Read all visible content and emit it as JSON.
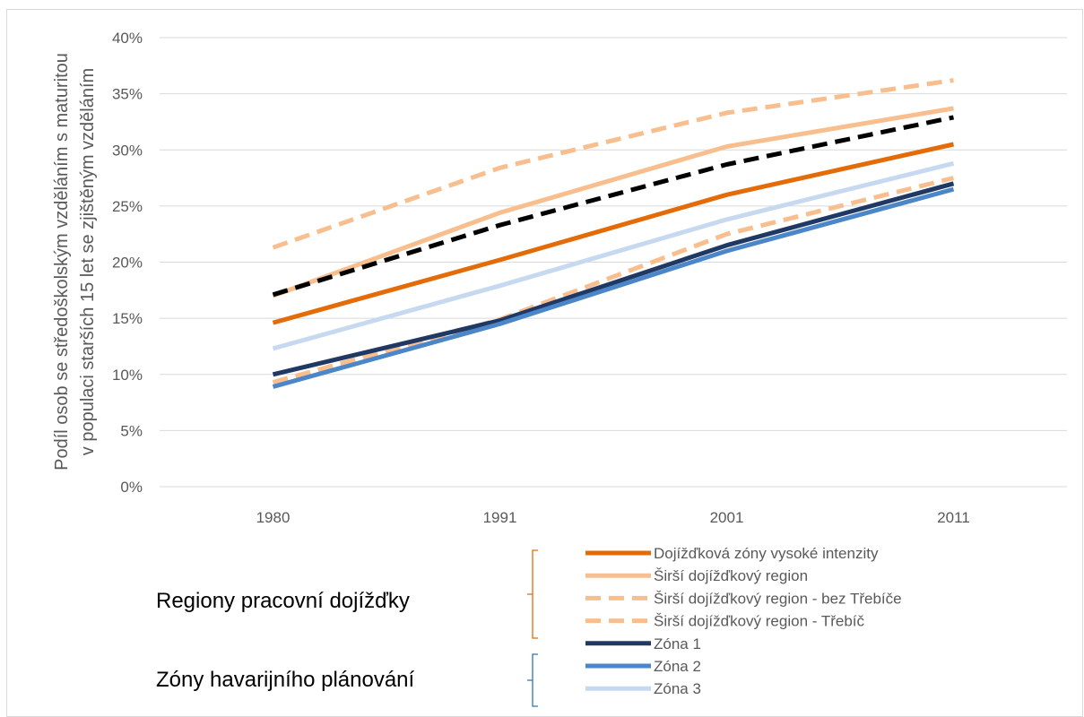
{
  "chart_data": {
    "type": "line",
    "title": "",
    "xlabel": "",
    "ylabel": "Podíl osob se středoškolským vzděláním s maturitou v populaci starších 15 let se zjištěným vzděláním",
    "ylabel_lines": [
      "Podíl osob se středoškolským vzděláním s maturitou",
      "v populaci starších 15 let se zjištěným vzděláním"
    ],
    "categories": [
      "1980",
      "1991",
      "2001",
      "2011"
    ],
    "ylim": [
      0,
      40
    ],
    "y_ticks": [
      "0%",
      "5%",
      "10%",
      "15%",
      "20%",
      "25%",
      "30%",
      "35%",
      "40%"
    ],
    "y_tick_values": [
      0,
      5,
      10,
      15,
      20,
      25,
      30,
      35,
      40
    ],
    "grid": true,
    "legend_position": "bottom",
    "series": [
      {
        "name": "Dojížďková zóny vysoké intenzity",
        "values": [
          14.6,
          20.2,
          26.0,
          30.5
        ],
        "color": "#e36c09",
        "dash": "solid"
      },
      {
        "name": "Širší dojížďkový region",
        "values": [
          17.0,
          24.4,
          30.3,
          33.7
        ],
        "color": "#f9be8e",
        "dash": "solid"
      },
      {
        "name": "Širší dojížďkový region - bez Třebíče",
        "values": [
          17.1,
          23.3,
          28.7,
          32.9
        ],
        "color": "#000000",
        "dash": "dash",
        "legend_color": "#f9be8e"
      },
      {
        "name": "Širší dojížďkový region - Třebíč",
        "values": [
          21.3,
          28.4,
          33.3,
          36.2
        ],
        "color": "#f9be8e",
        "dash": "dash"
      },
      {
        "name": "",
        "values": [
          9.3,
          14.9,
          22.5,
          27.5
        ],
        "color": "#f9be8e",
        "dash": "dash"
      },
      {
        "name": "Zóna 1",
        "values": [
          10.0,
          14.8,
          21.5,
          27.0
        ],
        "color": "#1f3864",
        "dash": "solid"
      },
      {
        "name": "Zóna 2",
        "values": [
          8.9,
          14.5,
          21.0,
          26.5
        ],
        "color": "#4a86c8",
        "dash": "solid"
      },
      {
        "name": "Zóna 3",
        "values": [
          12.3,
          17.9,
          23.8,
          28.8
        ],
        "color": "#c6d9f0",
        "dash": "solid"
      }
    ],
    "legend_entries": [
      {
        "label": "Dojížďková zóny vysoké intenzity",
        "color": "#e36c09",
        "dash": "solid"
      },
      {
        "label": "Širší dojížďkový region",
        "color": "#f9be8e",
        "dash": "solid"
      },
      {
        "label": "Širší dojížďkový region - bez Třebíče",
        "color": "#f9be8e",
        "dash": "dash"
      },
      {
        "label": "Širší dojížďkový region - Třebíč",
        "color": "#f9be8e",
        "dash": "dash"
      },
      {
        "label": "Zóna 1",
        "color": "#1f3864",
        "dash": "solid"
      },
      {
        "label": "Zóna 2",
        "color": "#4a86c8",
        "dash": "solid"
      },
      {
        "label": "Zóna 3",
        "color": "#c6d9f0",
        "dash": "solid"
      }
    ],
    "legend_groups": [
      {
        "label": "Regiony pracovní dojížďky",
        "color": "#e36c09"
      },
      {
        "label": "Zóny havarijního plánování",
        "color": "#2e75b6"
      }
    ]
  }
}
